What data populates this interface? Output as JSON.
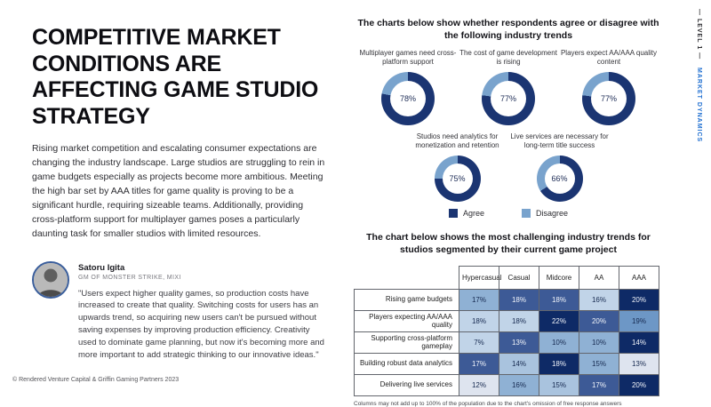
{
  "side_label": {
    "level": "— LEVEL 1 —",
    "section": "MARKET DYNAMICS"
  },
  "footer": "© Rendered Venture Capital & Griffin Gaming Partners 2023",
  "left": {
    "title": "COMPETITIVE MARKET CONDITIONS ARE AFFECTING GAME STUDIO STRATEGY",
    "body": "Rising market competition and escalating consumer expectations are changing the industry landscape. Large studios are struggling to rein in game budgets especially as projects become more ambitious. Meeting the high bar set by AAA titles for game quality is proving to be a significant hurdle, requiring sizeable teams. Additionally, providing cross-platform support for multiplayer games poses a particularly daunting task for smaller studios with limited resources.",
    "quote": {
      "name": "Satoru Igita",
      "role": "GM OF MONSTER STRIKE, MIXI",
      "text": "\"Users expect higher quality games, so production costs have increased to create that quality. Switching costs for users has an upwards trend, so acquiring new users can't be pursued without saving expenses by improving production efficiency. Creativity used to dominate game planning, but now it's becoming more and more important to add strategic thinking to our innovative ideas.\""
    }
  },
  "chart_data": [
    {
      "type": "pie",
      "variant": "donut",
      "title": "The charts below show whether respondents agree or disagree with the following industry trends",
      "colors": {
        "agree": "#1b3572",
        "disagree": "#79a3cd"
      },
      "legend": [
        {
          "label": "Agree",
          "color": "#1b3572"
        },
        {
          "label": "Disagree",
          "color": "#79a3cd"
        }
      ],
      "donuts": [
        {
          "label": "Multiplayer games need cross-platform support",
          "agree_pct": 78,
          "disagree_pct": 22,
          "row": 1
        },
        {
          "label": "The cost of game development is rising",
          "agree_pct": 77,
          "disagree_pct": 23,
          "row": 1
        },
        {
          "label": "Players expect AA/AAA quality content",
          "agree_pct": 77,
          "disagree_pct": 23,
          "row": 1
        },
        {
          "label": "Studios need analytics for monetization and retention",
          "agree_pct": 75,
          "disagree_pct": 25,
          "row": 2
        },
        {
          "label": "Live services are necessary for long-term title success",
          "agree_pct": 66,
          "disagree_pct": 34,
          "row": 2
        }
      ]
    },
    {
      "type": "heatmap",
      "title": "The chart below shows the most challenging industry trends for studios segmented by their current game project",
      "columns": [
        "Hypercasual",
        "Casual",
        "Midcore",
        "AA",
        "AAA"
      ],
      "rows": [
        {
          "label": "Rising game budgets",
          "values": [
            "17%",
            "18%",
            "18%",
            "16%",
            "20%"
          ],
          "colors": [
            "#8fb1d4",
            "#3d5a96",
            "#3d5a96",
            "#c1d4e8",
            "#0e2a66"
          ]
        },
        {
          "label": "Players expecting AA/AAA quality",
          "values": [
            "18%",
            "18%",
            "22%",
            "20%",
            "19%"
          ],
          "colors": [
            "#c1d4e8",
            "#c1d4e8",
            "#0e2a66",
            "#3d5a96",
            "#6d97c6"
          ]
        },
        {
          "label": "Supporting cross-platform gameplay",
          "values": [
            "7%",
            "13%",
            "10%",
            "10%",
            "14%"
          ],
          "colors": [
            "#c1d4e8",
            "#3d5a96",
            "#8fb1d4",
            "#8fb1d4",
            "#0e2a66"
          ]
        },
        {
          "label": "Building robust data analytics",
          "values": [
            "17%",
            "14%",
            "18%",
            "15%",
            "13%"
          ],
          "colors": [
            "#3d5a96",
            "#a9c3de",
            "#0e2a66",
            "#8fb1d4",
            "#dee4ef"
          ]
        },
        {
          "label": "Delivering live services",
          "values": [
            "12%",
            "16%",
            "15%",
            "17%",
            "20%"
          ],
          "colors": [
            "#dee4ef",
            "#8fb1d4",
            "#a9c3de",
            "#3d5a96",
            "#0e2a66"
          ]
        }
      ],
      "footnote": "Columns may not add up to 100% of the population due to the chart's omission of free response answers"
    }
  ]
}
